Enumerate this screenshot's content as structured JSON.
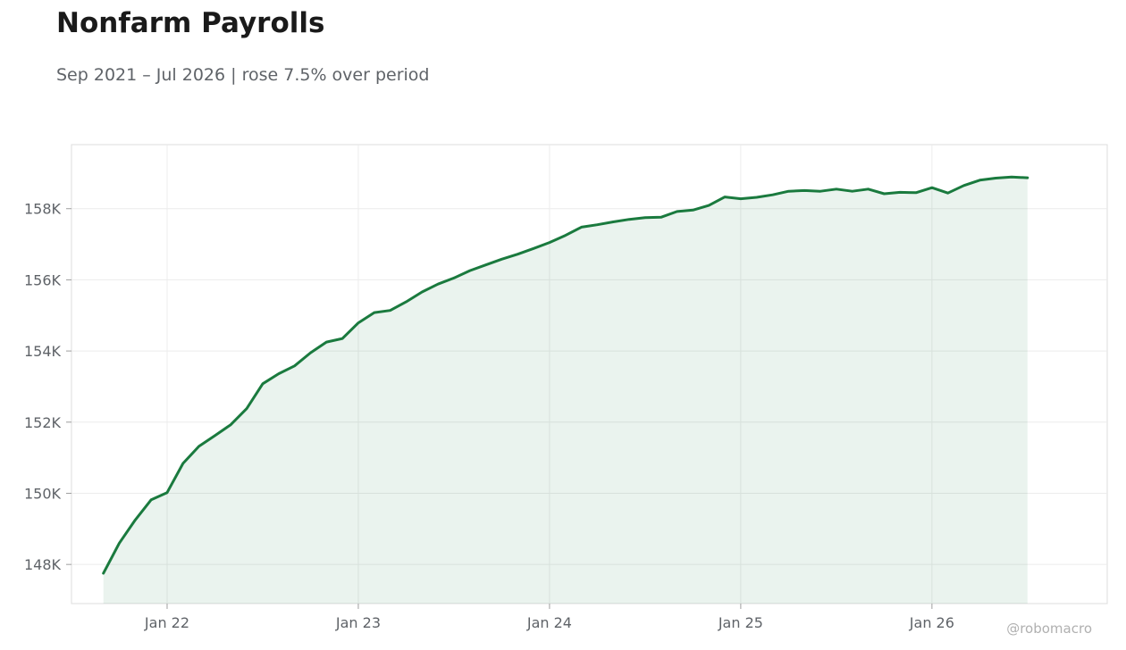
{
  "chart_data": {
    "type": "area",
    "title": "Nonfarm Payrolls",
    "subtitle": "Sep 2021 – Jul 2026 | rose 7.5% over period",
    "credit": "@robomacro",
    "xlabel": "",
    "ylabel": "",
    "x_start": "2021-09",
    "x_end": "2026-07",
    "xlim": [
      "2021-07",
      "2026-12"
    ],
    "ylim": [
      146900,
      159800
    ],
    "grid": true,
    "line_color": "#1a7a3e",
    "fill_color": "#1a7a3e",
    "x_ticks": [
      {
        "label": "Jan 22",
        "date": "2022-01"
      },
      {
        "label": "Jan 23",
        "date": "2023-01"
      },
      {
        "label": "Jan 24",
        "date": "2024-01"
      },
      {
        "label": "Jan 25",
        "date": "2025-01"
      },
      {
        "label": "Jan 26",
        "date": "2026-01"
      }
    ],
    "y_ticks": [
      {
        "label": "148K",
        "value": 148000
      },
      {
        "label": "150K",
        "value": 150000
      },
      {
        "label": "152K",
        "value": 152000
      },
      {
        "label": "154K",
        "value": 154000
      },
      {
        "label": "156K",
        "value": 156000
      },
      {
        "label": "158K",
        "value": 158000
      }
    ],
    "series": [
      {
        "x": [
          "2021-09",
          "2021-10",
          "2021-11",
          "2021-12",
          "2022-01",
          "2022-02",
          "2022-03",
          "2022-04",
          "2022-05",
          "2022-06",
          "2022-07",
          "2022-08",
          "2022-09",
          "2022-10",
          "2022-11",
          "2022-12",
          "2023-01",
          "2023-02",
          "2023-03",
          "2023-04",
          "2023-05",
          "2023-06",
          "2023-07",
          "2023-08",
          "2023-09",
          "2023-10",
          "2023-11",
          "2023-12",
          "2024-01",
          "2024-02",
          "2024-03",
          "2024-04",
          "2024-05",
          "2024-06",
          "2024-07",
          "2024-08",
          "2024-09",
          "2024-10",
          "2024-11",
          "2024-12",
          "2025-01",
          "2025-02",
          "2025-03",
          "2025-04",
          "2025-05",
          "2025-06",
          "2025-07",
          "2025-08",
          "2025-09",
          "2025-10",
          "2025-11",
          "2025-12",
          "2026-01",
          "2026-02",
          "2026-03",
          "2026-04",
          "2026-05",
          "2026-06",
          "2026-07"
        ],
        "values": [
          147750,
          148600,
          149250,
          149820,
          150020,
          150840,
          151320,
          151620,
          151930,
          152380,
          153080,
          153360,
          153580,
          153950,
          154250,
          154350,
          154790,
          155080,
          155140,
          155380,
          155660,
          155880,
          156050,
          156260,
          156420,
          156580,
          156720,
          156880,
          157050,
          157250,
          157480,
          157550,
          157630,
          157700,
          157750,
          157760,
          157920,
          157960,
          158090,
          158330,
          158280,
          158320,
          158390,
          158490,
          158510,
          158490,
          158550,
          158490,
          158550,
          158420,
          158460,
          158450,
          158590,
          158440,
          158650,
          158800,
          158860,
          158890,
          158870
        ]
      }
    ]
  }
}
